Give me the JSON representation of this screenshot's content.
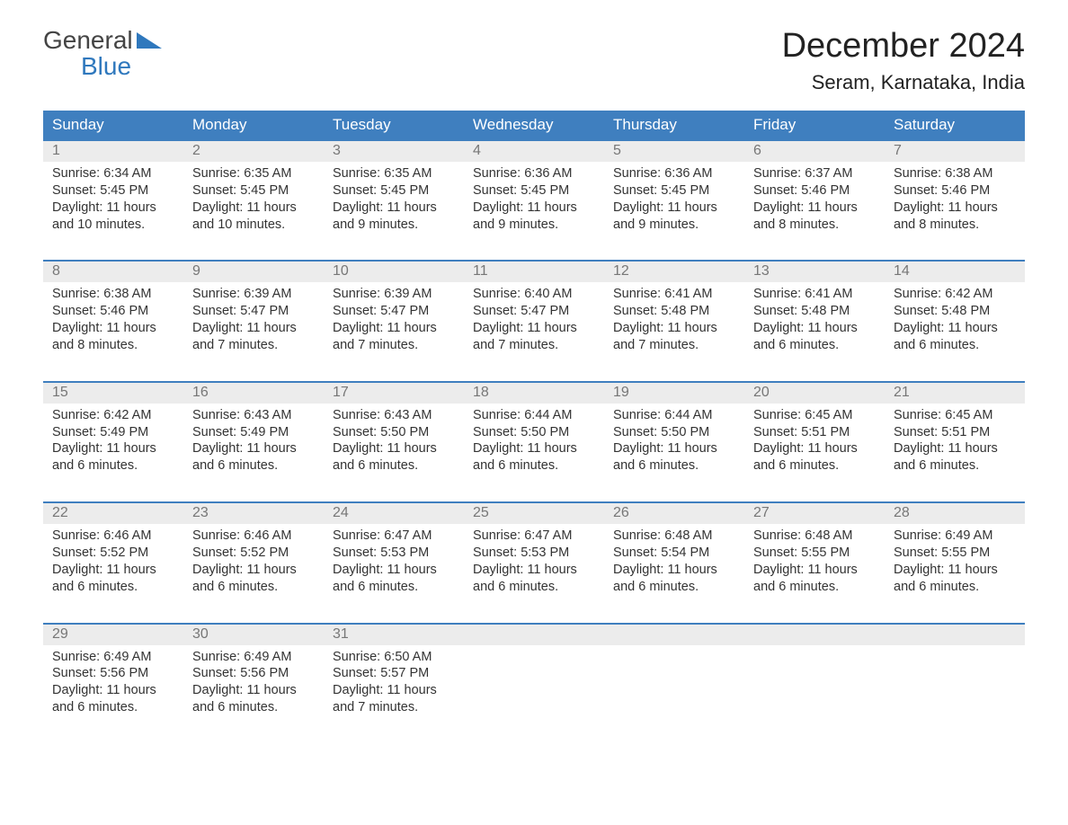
{
  "logo": {
    "line1": "General",
    "line2": "Blue"
  },
  "title": "December 2024",
  "location": "Seram, Karnataka, India",
  "styling": {
    "header_bg": "#3f7fbf",
    "header_text": "#ffffff",
    "daynum_bg": "#ececec",
    "daynum_text": "#777777",
    "body_text": "#333333",
    "week_border": "#3f7fbf",
    "logo_accent": "#2f78bd",
    "page_bg": "#ffffff",
    "month_title_fontsize": 38,
    "location_fontsize": 22,
    "weekday_fontsize": 17,
    "daynum_fontsize": 16,
    "content_fontsize": 14.5,
    "columns": 7
  },
  "weekdays": [
    "Sunday",
    "Monday",
    "Tuesday",
    "Wednesday",
    "Thursday",
    "Friday",
    "Saturday"
  ],
  "weeks": [
    [
      {
        "day": "1",
        "sunrise": "Sunrise: 6:34 AM",
        "sunset": "Sunset: 5:45 PM",
        "daylight1": "Daylight: 11 hours",
        "daylight2": "and 10 minutes."
      },
      {
        "day": "2",
        "sunrise": "Sunrise: 6:35 AM",
        "sunset": "Sunset: 5:45 PM",
        "daylight1": "Daylight: 11 hours",
        "daylight2": "and 10 minutes."
      },
      {
        "day": "3",
        "sunrise": "Sunrise: 6:35 AM",
        "sunset": "Sunset: 5:45 PM",
        "daylight1": "Daylight: 11 hours",
        "daylight2": "and 9 minutes."
      },
      {
        "day": "4",
        "sunrise": "Sunrise: 6:36 AM",
        "sunset": "Sunset: 5:45 PM",
        "daylight1": "Daylight: 11 hours",
        "daylight2": "and 9 minutes."
      },
      {
        "day": "5",
        "sunrise": "Sunrise: 6:36 AM",
        "sunset": "Sunset: 5:45 PM",
        "daylight1": "Daylight: 11 hours",
        "daylight2": "and 9 minutes."
      },
      {
        "day": "6",
        "sunrise": "Sunrise: 6:37 AM",
        "sunset": "Sunset: 5:46 PM",
        "daylight1": "Daylight: 11 hours",
        "daylight2": "and 8 minutes."
      },
      {
        "day": "7",
        "sunrise": "Sunrise: 6:38 AM",
        "sunset": "Sunset: 5:46 PM",
        "daylight1": "Daylight: 11 hours",
        "daylight2": "and 8 minutes."
      }
    ],
    [
      {
        "day": "8",
        "sunrise": "Sunrise: 6:38 AM",
        "sunset": "Sunset: 5:46 PM",
        "daylight1": "Daylight: 11 hours",
        "daylight2": "and 8 minutes."
      },
      {
        "day": "9",
        "sunrise": "Sunrise: 6:39 AM",
        "sunset": "Sunset: 5:47 PM",
        "daylight1": "Daylight: 11 hours",
        "daylight2": "and 7 minutes."
      },
      {
        "day": "10",
        "sunrise": "Sunrise: 6:39 AM",
        "sunset": "Sunset: 5:47 PM",
        "daylight1": "Daylight: 11 hours",
        "daylight2": "and 7 minutes."
      },
      {
        "day": "11",
        "sunrise": "Sunrise: 6:40 AM",
        "sunset": "Sunset: 5:47 PM",
        "daylight1": "Daylight: 11 hours",
        "daylight2": "and 7 minutes."
      },
      {
        "day": "12",
        "sunrise": "Sunrise: 6:41 AM",
        "sunset": "Sunset: 5:48 PM",
        "daylight1": "Daylight: 11 hours",
        "daylight2": "and 7 minutes."
      },
      {
        "day": "13",
        "sunrise": "Sunrise: 6:41 AM",
        "sunset": "Sunset: 5:48 PM",
        "daylight1": "Daylight: 11 hours",
        "daylight2": "and 6 minutes."
      },
      {
        "day": "14",
        "sunrise": "Sunrise: 6:42 AM",
        "sunset": "Sunset: 5:48 PM",
        "daylight1": "Daylight: 11 hours",
        "daylight2": "and 6 minutes."
      }
    ],
    [
      {
        "day": "15",
        "sunrise": "Sunrise: 6:42 AM",
        "sunset": "Sunset: 5:49 PM",
        "daylight1": "Daylight: 11 hours",
        "daylight2": "and 6 minutes."
      },
      {
        "day": "16",
        "sunrise": "Sunrise: 6:43 AM",
        "sunset": "Sunset: 5:49 PM",
        "daylight1": "Daylight: 11 hours",
        "daylight2": "and 6 minutes."
      },
      {
        "day": "17",
        "sunrise": "Sunrise: 6:43 AM",
        "sunset": "Sunset: 5:50 PM",
        "daylight1": "Daylight: 11 hours",
        "daylight2": "and 6 minutes."
      },
      {
        "day": "18",
        "sunrise": "Sunrise: 6:44 AM",
        "sunset": "Sunset: 5:50 PM",
        "daylight1": "Daylight: 11 hours",
        "daylight2": "and 6 minutes."
      },
      {
        "day": "19",
        "sunrise": "Sunrise: 6:44 AM",
        "sunset": "Sunset: 5:50 PM",
        "daylight1": "Daylight: 11 hours",
        "daylight2": "and 6 minutes."
      },
      {
        "day": "20",
        "sunrise": "Sunrise: 6:45 AM",
        "sunset": "Sunset: 5:51 PM",
        "daylight1": "Daylight: 11 hours",
        "daylight2": "and 6 minutes."
      },
      {
        "day": "21",
        "sunrise": "Sunrise: 6:45 AM",
        "sunset": "Sunset: 5:51 PM",
        "daylight1": "Daylight: 11 hours",
        "daylight2": "and 6 minutes."
      }
    ],
    [
      {
        "day": "22",
        "sunrise": "Sunrise: 6:46 AM",
        "sunset": "Sunset: 5:52 PM",
        "daylight1": "Daylight: 11 hours",
        "daylight2": "and 6 minutes."
      },
      {
        "day": "23",
        "sunrise": "Sunrise: 6:46 AM",
        "sunset": "Sunset: 5:52 PM",
        "daylight1": "Daylight: 11 hours",
        "daylight2": "and 6 minutes."
      },
      {
        "day": "24",
        "sunrise": "Sunrise: 6:47 AM",
        "sunset": "Sunset: 5:53 PM",
        "daylight1": "Daylight: 11 hours",
        "daylight2": "and 6 minutes."
      },
      {
        "day": "25",
        "sunrise": "Sunrise: 6:47 AM",
        "sunset": "Sunset: 5:53 PM",
        "daylight1": "Daylight: 11 hours",
        "daylight2": "and 6 minutes."
      },
      {
        "day": "26",
        "sunrise": "Sunrise: 6:48 AM",
        "sunset": "Sunset: 5:54 PM",
        "daylight1": "Daylight: 11 hours",
        "daylight2": "and 6 minutes."
      },
      {
        "day": "27",
        "sunrise": "Sunrise: 6:48 AM",
        "sunset": "Sunset: 5:55 PM",
        "daylight1": "Daylight: 11 hours",
        "daylight2": "and 6 minutes."
      },
      {
        "day": "28",
        "sunrise": "Sunrise: 6:49 AM",
        "sunset": "Sunset: 5:55 PM",
        "daylight1": "Daylight: 11 hours",
        "daylight2": "and 6 minutes."
      }
    ],
    [
      {
        "day": "29",
        "sunrise": "Sunrise: 6:49 AM",
        "sunset": "Sunset: 5:56 PM",
        "daylight1": "Daylight: 11 hours",
        "daylight2": "and 6 minutes."
      },
      {
        "day": "30",
        "sunrise": "Sunrise: 6:49 AM",
        "sunset": "Sunset: 5:56 PM",
        "daylight1": "Daylight: 11 hours",
        "daylight2": "and 6 minutes."
      },
      {
        "day": "31",
        "sunrise": "Sunrise: 6:50 AM",
        "sunset": "Sunset: 5:57 PM",
        "daylight1": "Daylight: 11 hours",
        "daylight2": "and 7 minutes."
      },
      null,
      null,
      null,
      null
    ]
  ]
}
